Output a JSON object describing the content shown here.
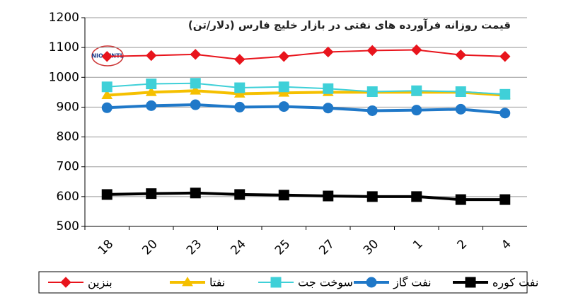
{
  "chart_data": {
    "type": "line",
    "title": "قیمت روزانه فرآورده های نفتی در بازار خلیج فارس (دلار/تن)",
    "logo": "NIOC INTL",
    "categories": [
      "18",
      "20",
      "23",
      "24",
      "25",
      "27",
      "30",
      "1",
      "2",
      "4"
    ],
    "series": [
      {
        "name": "بنزین",
        "color": "#e8141c",
        "marker": "diamond",
        "values": [
          1070,
          1073,
          1077,
          1060,
          1070,
          1085,
          1090,
          1092,
          1075,
          1070
        ]
      },
      {
        "name": "نفتا",
        "color": "#f5c000",
        "marker": "triangle",
        "values": [
          940,
          950,
          955,
          945,
          948,
          950,
          950,
          950,
          950,
          940
        ]
      },
      {
        "name": "سوخت جت",
        "color": "#3fd0d8",
        "marker": "square",
        "values": [
          968,
          978,
          980,
          965,
          968,
          962,
          952,
          955,
          952,
          943
        ]
      },
      {
        "name": "نفت گاز",
        "color": "#1f78c8",
        "marker": "circle",
        "values": [
          898,
          905,
          908,
          900,
          902,
          897,
          888,
          890,
          893,
          880
        ]
      },
      {
        "name": "نفت کوره",
        "color": "#000000",
        "marker": "square",
        "values": [
          607,
          610,
          612,
          607,
          605,
          602,
          600,
          600,
          590,
          590
        ]
      }
    ],
    "ylim": [
      500,
      1200
    ],
    "yticks": [
      500,
      600,
      700,
      800,
      900,
      1000,
      1100,
      1200
    ],
    "grid": true
  }
}
